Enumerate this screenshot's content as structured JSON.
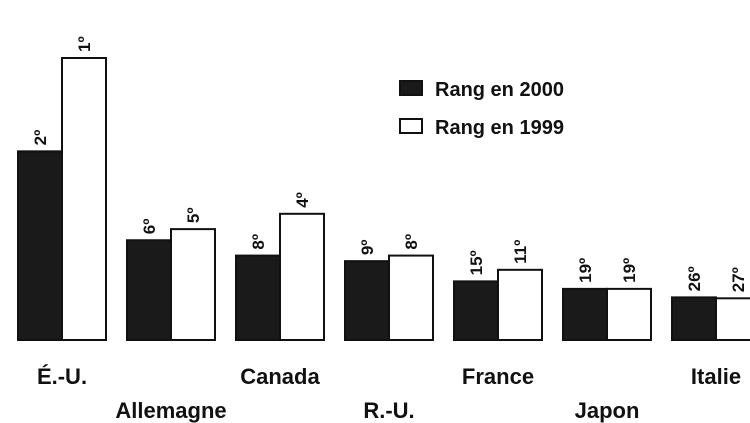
{
  "chart_data": {
    "type": "bar",
    "categories": [
      "É.-U.",
      "Allemagne",
      "Canada",
      "R.-U.",
      "France",
      "Japon",
      "Italie"
    ],
    "series": [
      {
        "name": "Rang en 2000",
        "color": "#1a1a1a",
        "values": [
          2,
          6,
          8,
          9,
          15,
          19,
          26
        ],
        "value_labels": [
          "2º",
          "6º",
          "8º",
          "9º",
          "15º",
          "19º",
          "26º"
        ]
      },
      {
        "name": "Rang en 1999",
        "color": "#ffffff",
        "values": [
          1,
          5,
          4,
          8,
          11,
          19,
          27
        ],
        "value_labels": [
          "1º",
          "5º",
          "4º",
          "8º",
          "11º",
          "19º",
          "27º"
        ]
      }
    ],
    "legend": "upper right"
  }
}
